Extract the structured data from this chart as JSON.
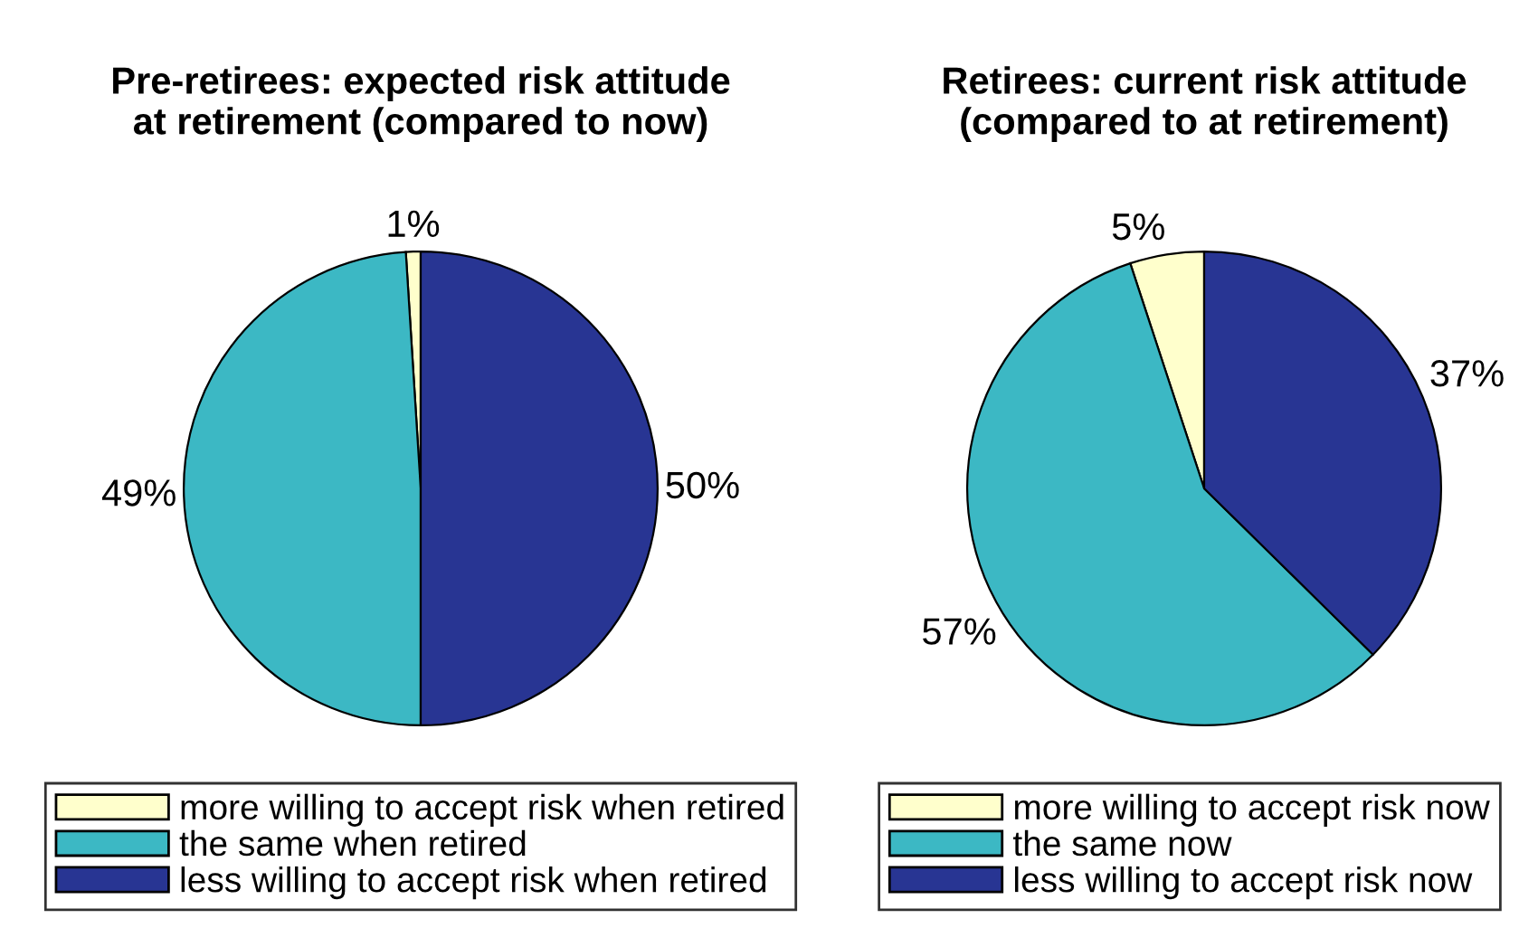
{
  "chart_data": [
    {
      "type": "pie",
      "title": "Pre-retirees: expected risk attitude\nat retirement (compared to now)",
      "categories": [
        "more willing to accept risk when retired",
        "the same when retired",
        "less willing to accept risk when retired"
      ],
      "values": [
        1,
        49,
        50
      ],
      "value_labels": [
        "1%",
        "49%",
        "50%"
      ],
      "colors": [
        "#ffffcc",
        "#3cb8c4",
        "#283593"
      ],
      "legend": "bottom"
    },
    {
      "type": "pie",
      "title": "Retirees: current risk attitude\n(compared to at retirement)",
      "categories": [
        "more willing to accept risk now",
        "the same now",
        "less willing to accept risk now"
      ],
      "values": [
        5,
        57,
        37
      ],
      "value_labels": [
        "5%",
        "57%",
        "37%"
      ],
      "colors": [
        "#ffffcc",
        "#3cb8c4",
        "#283593"
      ],
      "legend": "bottom"
    }
  ]
}
